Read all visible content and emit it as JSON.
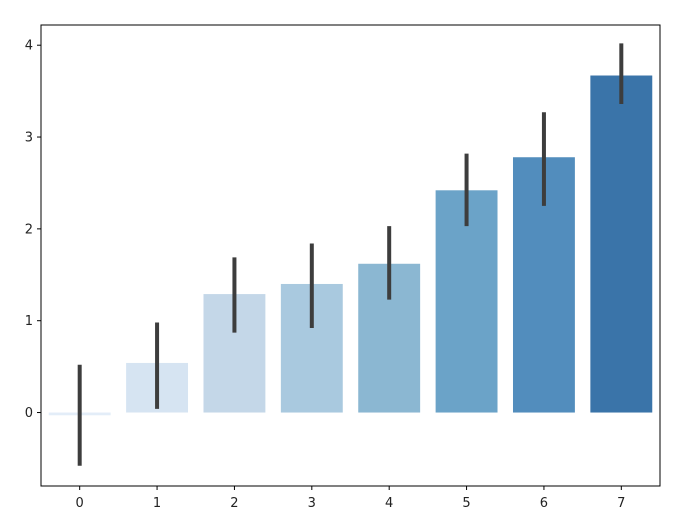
{
  "chart_data": {
    "type": "bar",
    "categories": [
      "0",
      "1",
      "2",
      "3",
      "4",
      "5",
      "6",
      "7"
    ],
    "values": [
      -0.03,
      0.54,
      1.29,
      1.4,
      1.62,
      2.42,
      2.78,
      3.67
    ],
    "error_low": [
      -0.58,
      0.04,
      0.87,
      0.92,
      1.23,
      2.03,
      2.25,
      3.36
    ],
    "error_high": [
      0.52,
      0.98,
      1.69,
      1.84,
      2.03,
      2.82,
      3.27,
      4.02
    ],
    "colors": [
      "#e3edf8",
      "#d6e4f2",
      "#c4d7e8",
      "#a9c9df",
      "#8bb7d2",
      "#6ba3c8",
      "#528dbd",
      "#3a74a9"
    ],
    "error_color": "#3d3d3d",
    "yticks": [
      0,
      1,
      2,
      3,
      4
    ],
    "ytick_labels": [
      "0",
      "1",
      "2",
      "3",
      "4"
    ],
    "ylim": [
      -0.8,
      4.22
    ],
    "title": "",
    "xlabel": "",
    "ylabel": "",
    "grid": false,
    "legend": "none"
  }
}
